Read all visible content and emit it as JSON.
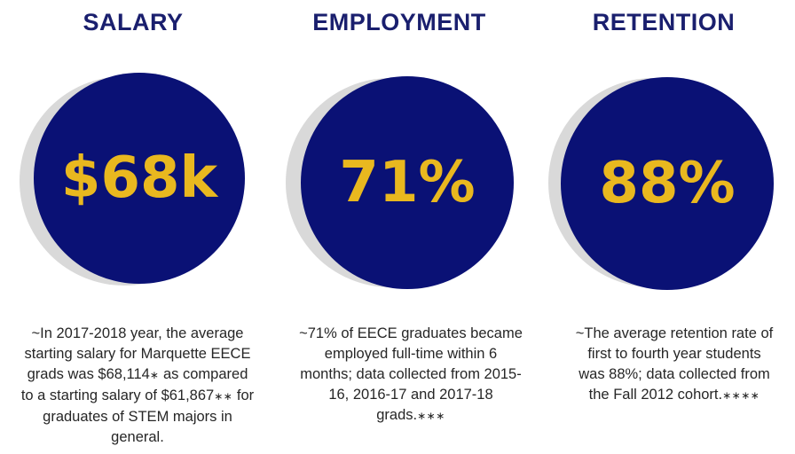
{
  "stats": [
    {
      "heading": "SALARY",
      "value": "$68k",
      "desc_lines": [
        {
          "text": "~In 2017-2018 year, the average",
          "mark": ""
        },
        {
          "text": "starting salary for Marquette EECE",
          "mark": ""
        },
        {
          "text": "grads was $68,114",
          "mark": "*",
          "tail": "  as compared"
        },
        {
          "text": "to a starting salary of $61,867",
          "mark": "**",
          "tail": " for"
        },
        {
          "text": "graduates of STEM majors in",
          "mark": ""
        },
        {
          "text": "general.",
          "mark": ""
        }
      ]
    },
    {
      "heading": "EMPLOYMENT",
      "value": "71%",
      "desc_lines": [
        {
          "text": "~71% of EECE graduates became",
          "mark": ""
        },
        {
          "text": "employed full-time within 6",
          "mark": ""
        },
        {
          "text": "months; data collected from 2015-",
          "mark": ""
        },
        {
          "text": "16, 2016-17 and 2017-18",
          "mark": ""
        },
        {
          "text": "grads.",
          "mark": "***"
        }
      ]
    },
    {
      "heading": "RETENTION",
      "value": "88%",
      "desc_lines": [
        {
          "text": "~The average retention rate of",
          "mark": ""
        },
        {
          "text": "first to fourth year students",
          "mark": ""
        },
        {
          "text": "was 88%; data collected from",
          "mark": ""
        },
        {
          "text": "the Fall 2012 cohort.",
          "mark": "****"
        }
      ]
    }
  ],
  "colors": {
    "heading": "#1a1f6e",
    "disc": "#0a1175",
    "disc_shadow": "#d9d9d9",
    "stat_text": "#e9b81f",
    "body_text": "#262626"
  }
}
